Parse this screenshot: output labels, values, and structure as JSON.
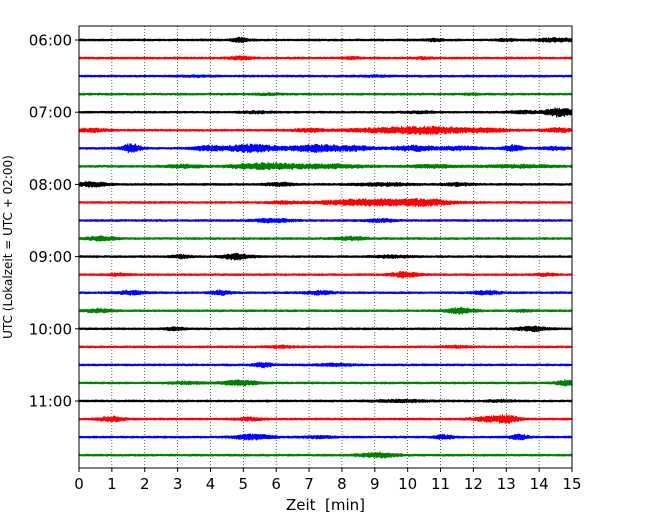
{
  "chart_data": {
    "type": "line",
    "subtype": "helicorder",
    "title": "",
    "xlabel": "Zeit  [min]",
    "ylabel": "UTC (Lokalzeit = UTC + 02:00)",
    "xlim": [
      0,
      15
    ],
    "x_ticks": [
      "0",
      "1",
      "2",
      "3",
      "4",
      "5",
      "6",
      "7",
      "8",
      "9",
      "10",
      "11",
      "12",
      "13",
      "14",
      "15"
    ],
    "y_tick_labels": [
      "06:00",
      "07:00",
      "08:00",
      "09:00",
      "10:00",
      "11:00"
    ],
    "grid": "vertical dotted lines at each minute",
    "legend": "none",
    "trace_colors": [
      "#000000",
      "#ff0000",
      "#0000ff",
      "#008000"
    ],
    "traces": [
      {
        "bursts": [
          [
            4.9,
            0.18,
            2.0
          ],
          [
            10.8,
            0.2,
            1.0
          ],
          [
            13.0,
            0.2,
            1.1
          ],
          [
            14.5,
            0.4,
            1.7
          ]
        ]
      },
      {
        "bursts": [
          [
            4.9,
            0.25,
            1.4
          ],
          [
            8.3,
            0.2,
            0.8
          ],
          [
            10.5,
            0.2,
            0.8
          ]
        ]
      },
      {
        "bursts": [
          [
            3.5,
            0.3,
            0.6
          ],
          [
            9.0,
            0.3,
            0.5
          ]
        ]
      },
      {
        "bursts": [
          [
            5.8,
            0.3,
            0.7
          ],
          [
            12.0,
            0.2,
            0.5
          ]
        ]
      },
      {
        "bursts": [
          [
            5.4,
            0.3,
            0.8
          ],
          [
            10.4,
            0.3,
            0.8
          ],
          [
            13.5,
            0.3,
            1.2
          ],
          [
            14.6,
            0.3,
            4.0
          ]
        ]
      },
      {
        "bursts": [
          [
            0.4,
            0.3,
            1.6
          ],
          [
            7.0,
            0.3,
            1.4
          ],
          [
            9.5,
            1.0,
            2.0
          ],
          [
            10.9,
            0.8,
            2.4
          ],
          [
            12.5,
            0.5,
            1.2
          ],
          [
            14.6,
            0.3,
            1.8
          ]
        ]
      },
      {
        "bursts": [
          [
            1.6,
            0.2,
            4.0
          ],
          [
            3.9,
            0.3,
            2.0
          ],
          [
            5.2,
            0.6,
            3.4
          ],
          [
            7.3,
            0.6,
            3.2
          ],
          [
            8.5,
            0.3,
            1.8
          ],
          [
            10.2,
            0.5,
            2.2
          ],
          [
            11.6,
            0.4,
            1.6
          ],
          [
            13.2,
            0.2,
            2.8
          ],
          [
            14.5,
            0.3,
            1.4
          ]
        ]
      },
      {
        "bursts": [
          [
            3.2,
            0.4,
            1.4
          ],
          [
            5.6,
            0.7,
            2.8
          ],
          [
            7.6,
            0.8,
            1.8
          ],
          [
            10.8,
            0.6,
            1.2
          ],
          [
            13.5,
            0.8,
            1.2
          ]
        ]
      },
      {
        "bursts": [
          [
            0.4,
            0.3,
            2.2
          ],
          [
            6.1,
            0.3,
            1.4
          ],
          [
            9.3,
            0.6,
            1.2
          ],
          [
            11.5,
            0.3,
            1.2
          ]
        ]
      },
      {
        "bursts": [
          [
            6.2,
            0.3,
            1.0
          ],
          [
            8.8,
            1.0,
            2.8
          ],
          [
            10.5,
            0.6,
            2.6
          ]
        ]
      },
      {
        "bursts": [
          [
            5.9,
            0.4,
            1.6
          ],
          [
            9.2,
            0.3,
            1.4
          ]
        ]
      },
      {
        "bursts": [
          [
            0.7,
            0.3,
            2.0
          ],
          [
            8.3,
            0.3,
            1.6
          ]
        ]
      },
      {
        "bursts": [
          [
            3.1,
            0.2,
            1.4
          ],
          [
            4.8,
            0.3,
            2.6
          ],
          [
            9.5,
            0.4,
            1.0
          ]
        ]
      },
      {
        "bursts": [
          [
            1.2,
            0.2,
            1.0
          ],
          [
            9.9,
            0.3,
            2.4
          ],
          [
            14.2,
            0.2,
            1.0
          ]
        ]
      },
      {
        "bursts": [
          [
            1.6,
            0.3,
            1.6
          ],
          [
            4.3,
            0.2,
            2.0
          ],
          [
            7.3,
            0.3,
            1.6
          ],
          [
            12.4,
            0.3,
            1.6
          ]
        ]
      },
      {
        "bursts": [
          [
            0.6,
            0.3,
            1.4
          ],
          [
            11.6,
            0.3,
            2.6
          ],
          [
            13.5,
            0.2,
            1.0
          ]
        ]
      },
      {
        "bursts": [
          [
            2.9,
            0.2,
            1.4
          ],
          [
            13.8,
            0.3,
            2.2
          ]
        ]
      },
      {
        "bursts": [
          [
            6.1,
            0.3,
            1.0
          ],
          [
            11.5,
            0.3,
            0.8
          ]
        ]
      },
      {
        "bursts": [
          [
            5.6,
            0.2,
            2.2
          ],
          [
            7.8,
            0.4,
            1.0
          ]
        ]
      },
      {
        "bursts": [
          [
            3.3,
            0.4,
            1.0
          ],
          [
            4.9,
            0.4,
            2.2
          ],
          [
            14.8,
            0.2,
            2.4
          ]
        ]
      },
      {
        "bursts": [
          [
            9.8,
            0.6,
            1.0
          ],
          [
            12.8,
            0.3,
            0.8
          ]
        ]
      },
      {
        "bursts": [
          [
            1.0,
            0.3,
            2.0
          ],
          [
            5.2,
            0.3,
            1.2
          ],
          [
            12.6,
            0.4,
            2.8
          ],
          [
            13.1,
            0.2,
            2.0
          ]
        ]
      },
      {
        "bursts": [
          [
            5.3,
            0.4,
            2.4
          ],
          [
            7.3,
            0.3,
            1.0
          ],
          [
            11.1,
            0.2,
            2.0
          ],
          [
            13.4,
            0.2,
            2.2
          ]
        ]
      },
      {
        "bursts": [
          [
            9.1,
            0.4,
            2.0
          ]
        ]
      }
    ]
  }
}
